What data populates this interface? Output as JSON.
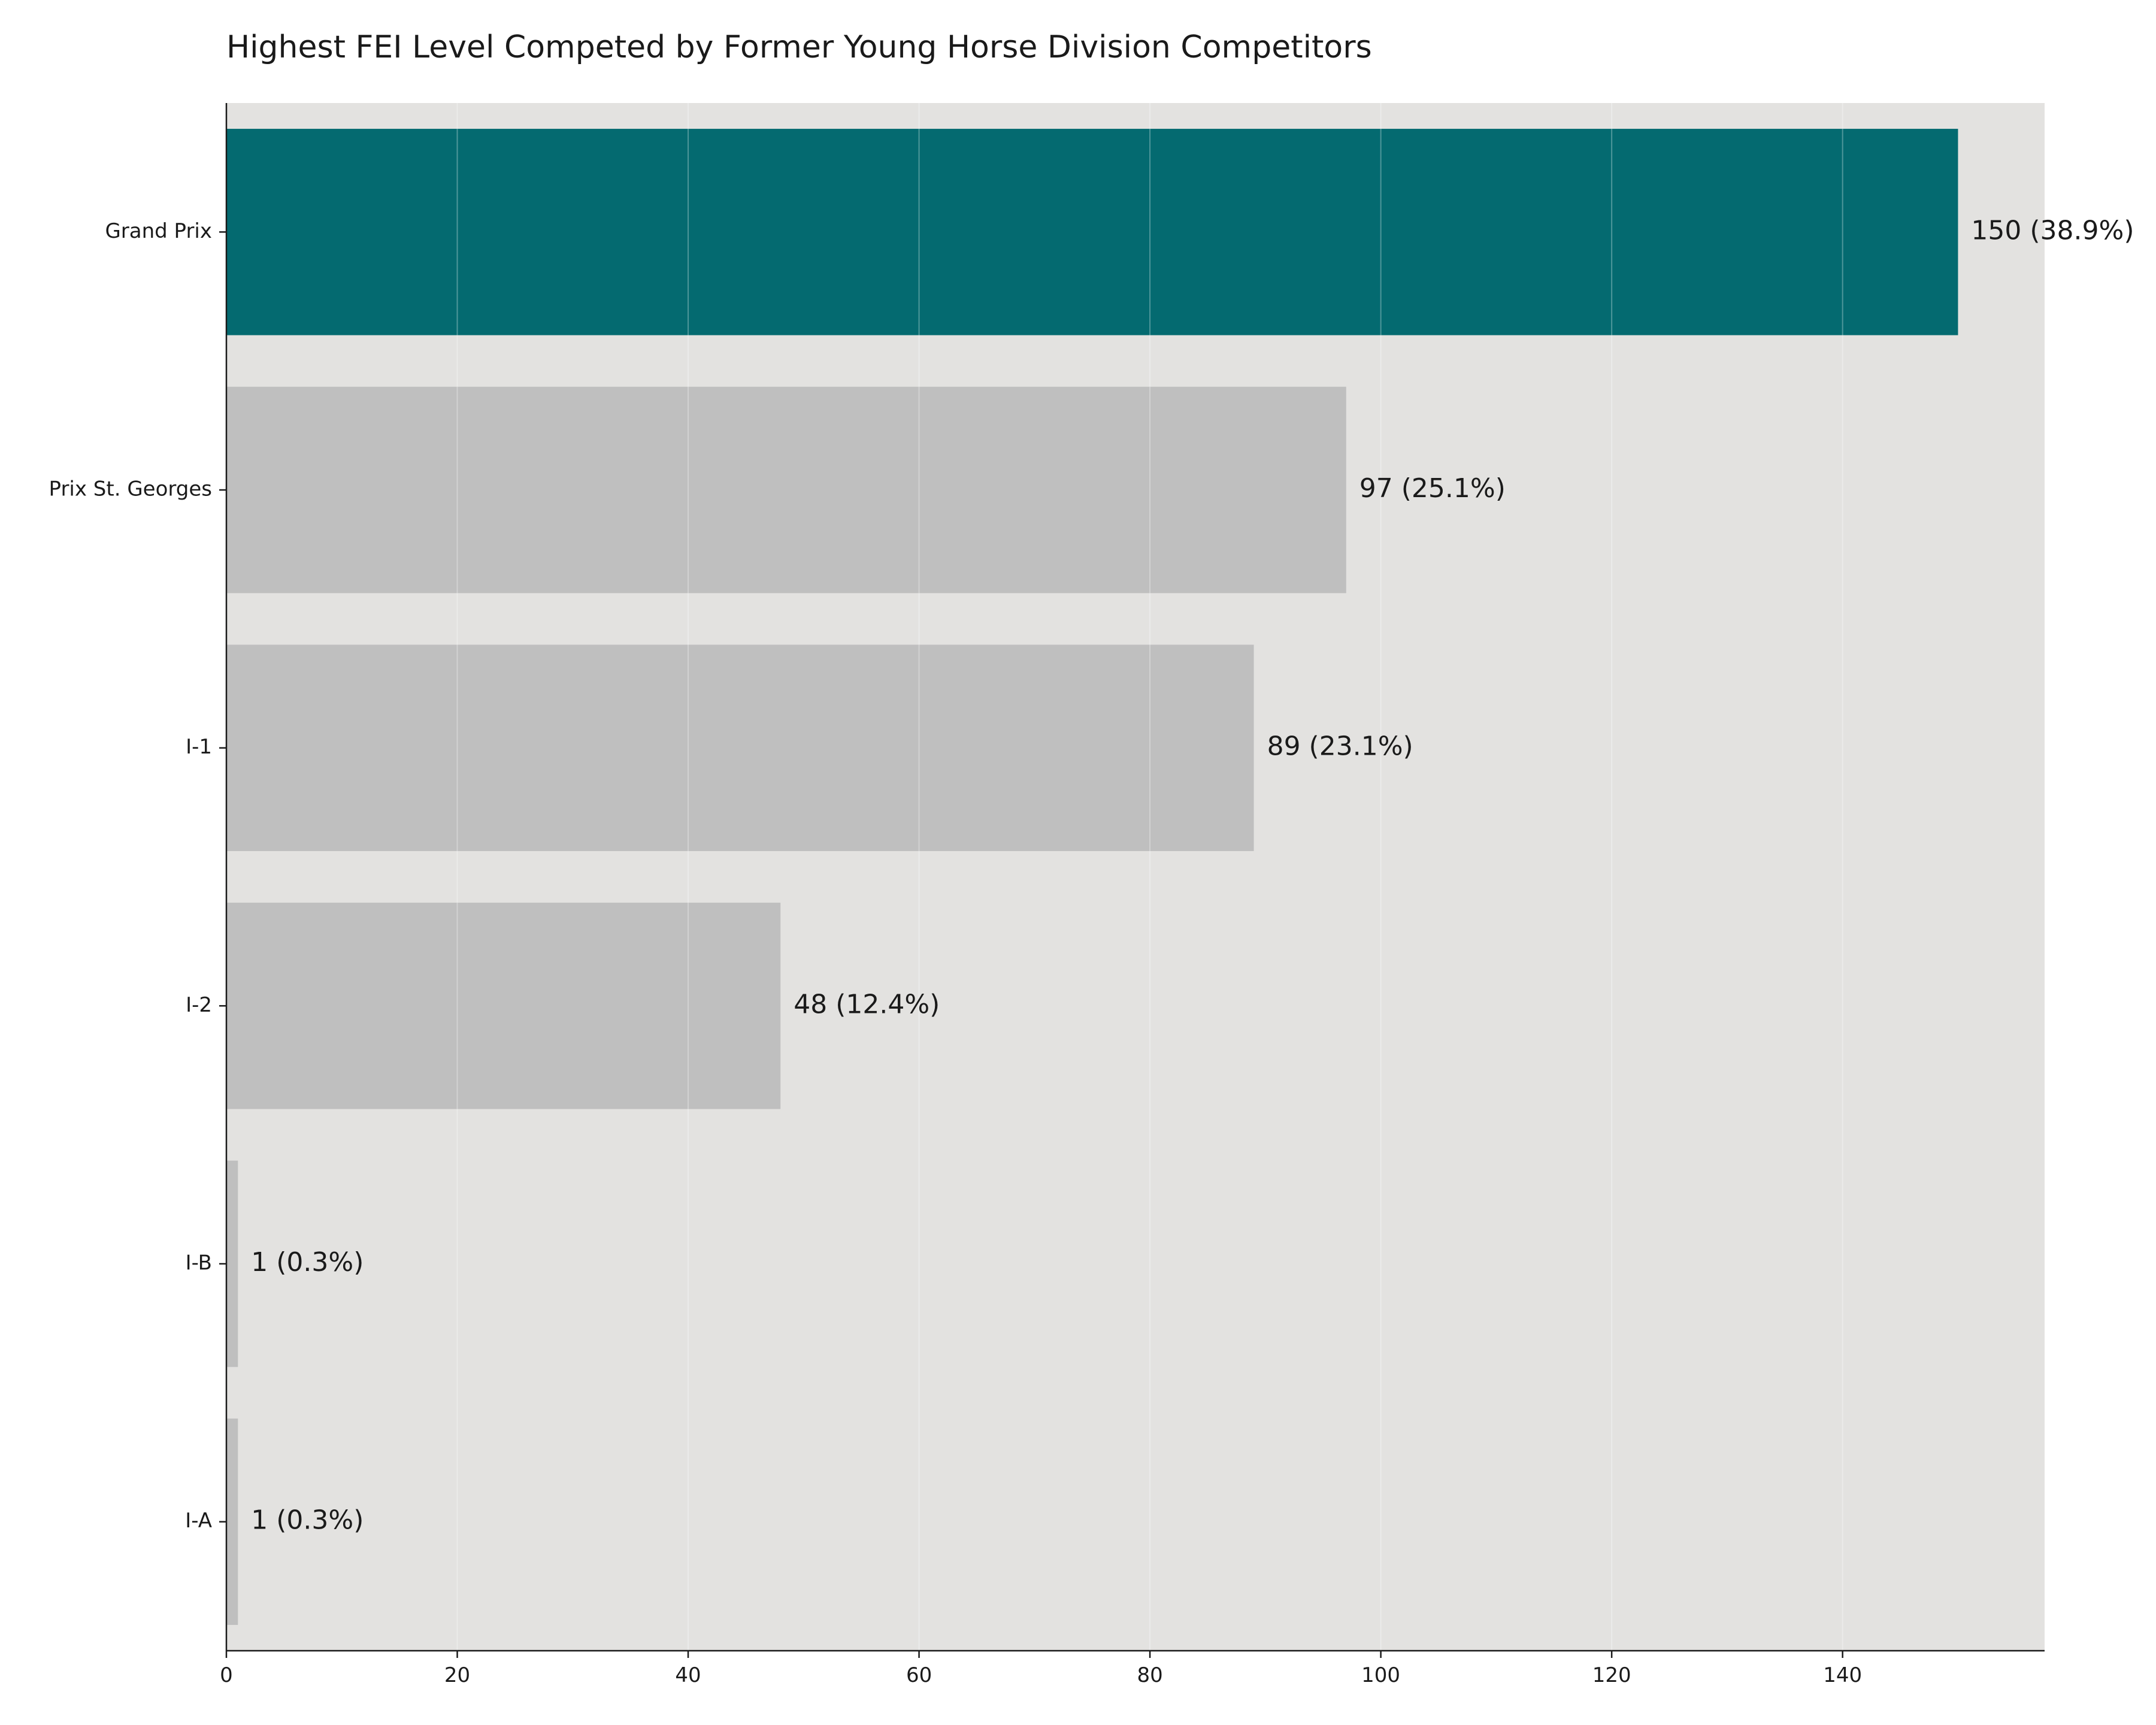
{
  "chart_data": {
    "type": "bar",
    "orientation": "horizontal",
    "title": "Highest FEI Level Competed by Former Young Horse Division Competitors",
    "xlabel": "",
    "ylabel": "",
    "categories": [
      "Grand Prix",
      "Prix St. Georges",
      "I-1",
      "I-2",
      "I-B",
      "I-A"
    ],
    "values": [
      150,
      97,
      89,
      48,
      1,
      1
    ],
    "value_labels": [
      "150 (38.9%)",
      "97 (25.1%)",
      "89 (23.1%)",
      "48 (12.4%)",
      "1 (0.3%)",
      "1 (0.3%)"
    ],
    "xlim": [
      0,
      157.5
    ],
    "xticks": [
      0,
      20,
      40,
      60,
      80,
      100,
      120,
      140
    ],
    "grid": "vertical",
    "legend": "none",
    "colors": {
      "highlight_bar": "#046a70",
      "default_bar": "#bfbfbf",
      "plot_background": "#e3e2e0",
      "gridline": "#f2f2f2",
      "axis": "#1a1a1a",
      "text": "#1a1a1a"
    },
    "highlight_category": "Grand Prix"
  }
}
